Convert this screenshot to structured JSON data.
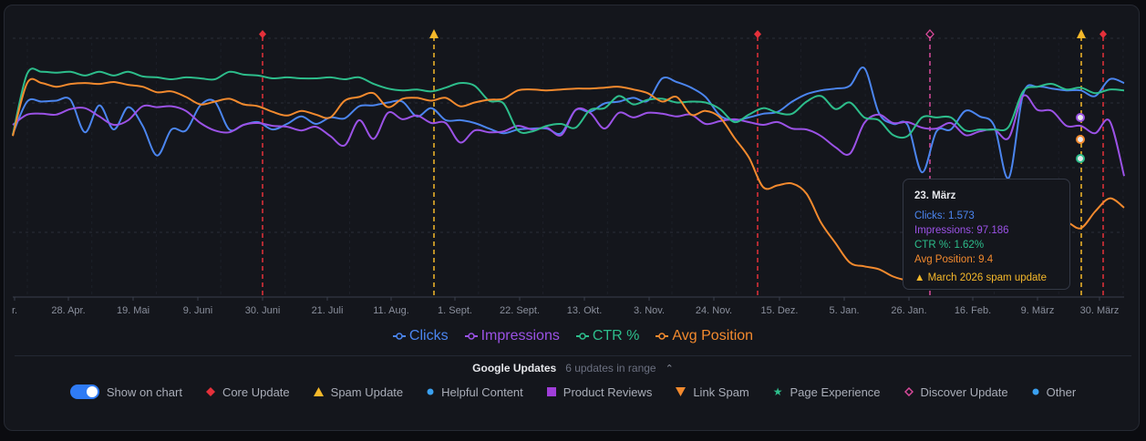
{
  "chart_data": {
    "type": "line",
    "x_tick_labels": [
      "r.",
      "28. Apr.",
      "19. Mai",
      "9. Juni",
      "30. Juni",
      "21. Juli",
      "11. Aug.",
      "1. Sept.",
      "22. Sept.",
      "13. Okt.",
      "3. Nov.",
      "24. Nov.",
      "15. Dez.",
      "5. Jan.",
      "26. Jan.",
      "16. Feb.",
      "9. März",
      "30. März"
    ],
    "grid": "horizontal dashed",
    "series": [
      {
        "name": "Clicks",
        "color": "#4b85ef",
        "values": [
          105,
          70,
          70,
          69,
          68,
          103,
          74,
          100,
          76,
          96,
          128,
          100,
          101,
          74,
          70,
          100,
          95,
          92,
          100,
          94,
          86,
          94,
          87,
          88,
          75,
          74,
          71,
          70,
          86,
          77,
          90,
          90,
          93,
          99,
          104,
          100,
          99,
          99,
          104,
          79,
          81,
          72,
          70,
          66,
          69,
          45,
          49,
          55,
          65,
          85,
          90,
          87,
          83,
          81,
          70,
          62,
          58,
          56,
          53,
          34,
          82,
          94,
          95,
          146,
          102,
          100,
          80,
          86,
          96,
          152,
          62,
          54,
          56,
          58,
          58,
          64,
          46,
          50
        ]
      },
      {
        "name": "Impressions",
        "color": "#9b52e6",
        "values": [
          95,
          84,
          83,
          84,
          78,
          77,
          86,
          95,
          90,
          75,
          76,
          75,
          80,
          93,
          101,
          103,
          95,
          93,
          96,
          97,
          101,
          97,
          107,
          117,
          90,
          110,
          82,
          89,
          85,
          93,
          93,
          114,
          101,
          103,
          102,
          96,
          100,
          98,
          106,
          79,
          82,
          99,
          82,
          87,
          82,
          83,
          86,
          84,
          94,
          91,
          89,
          92,
          95,
          92,
          99,
          100,
          107,
          119,
          126,
          93,
          84,
          93,
          92,
          98,
          99,
          93,
          106,
          102,
          100,
          109,
          64,
          79,
          80,
          96,
          96,
          104,
          91,
          150
        ]
      },
      {
        "name": "CTR %",
        "color": "#2dbd8b",
        "values": [
          106,
          40,
          38,
          39,
          38,
          42,
          38,
          42,
          38,
          43,
          44,
          46,
          44,
          45,
          46,
          38,
          41,
          42,
          45,
          44,
          45,
          45,
          44,
          46,
          44,
          51,
          56,
          58,
          57,
          59,
          55,
          50,
          53,
          69,
          72,
          101,
          102,
          96,
          94,
          98,
          79,
          77,
          64,
          73,
          68,
          67,
          71,
          70,
          71,
          78,
          92,
          84,
          77,
          82,
          83,
          70,
          64,
          78,
          71,
          87,
          90,
          106,
          107,
          87,
          87,
          87,
          101,
          100,
          100,
          97,
          59,
          54,
          51,
          57,
          55,
          61,
          57,
          58
        ]
      },
      {
        "name": "Avg Position",
        "color": "#f38a2e",
        "values": [
          107,
          50,
          50,
          54,
          51,
          50,
          51,
          49,
          52,
          54,
          60,
          59,
          65,
          73,
          70,
          67,
          73,
          75,
          81,
          85,
          80,
          84,
          87,
          69,
          65,
          61,
          76,
          67,
          66,
          69,
          66,
          75,
          71,
          68,
          67,
          58,
          57,
          58,
          57,
          56,
          56,
          55,
          54,
          57,
          61,
          70,
          65,
          84,
          80,
          87,
          109,
          130,
          162,
          160,
          158,
          169,
          200,
          222,
          243,
          247,
          250,
          258,
          262,
          262,
          264,
          263,
          266,
          267,
          258,
          247,
          233,
          220,
          208,
          200,
          206,
          188,
          174,
          184
        ]
      }
    ],
    "update_markers": [
      {
        "type": "Core Update",
        "color": "#e5303a"
      },
      {
        "type": "Spam Update",
        "color": "#f5b82a"
      },
      {
        "type": "Core Update",
        "color": "#e5303a"
      },
      {
        "type": "Discover Update",
        "color": "#d94a9b"
      },
      {
        "type": "Spam Update",
        "color": "#f5b82a"
      },
      {
        "type": "Core Update",
        "color": "#e5303a"
      }
    ],
    "tooltip": {
      "date": "23. März",
      "lines": [
        "Clicks: 1.573",
        "Impressions: 97.186",
        "CTR %: 1.62%",
        "Avg Position: 9.4"
      ],
      "event": "March 2026 spam update"
    }
  },
  "legend": [
    {
      "label": "Clicks",
      "color": "#4b85ef"
    },
    {
      "label": "Impressions",
      "color": "#9b52e6"
    },
    {
      "label": "CTR %",
      "color": "#2dbd8b"
    },
    {
      "label": "Avg Position",
      "color": "#f38a2e"
    }
  ],
  "updates": {
    "title": "Google Updates",
    "count": "6 updates in range",
    "chevron": "⌃",
    "show_label": "Show on chart",
    "types": [
      {
        "label": "Core Update",
        "icon": "diamond-icon",
        "color": "#e5303a"
      },
      {
        "label": "Spam Update",
        "icon": "triangle-up-icon",
        "color": "#f5b82a"
      },
      {
        "label": "Helpful Content",
        "icon": "dot-icon",
        "color": "#3aa0f0"
      },
      {
        "label": "Product Reviews",
        "icon": "square-icon",
        "color": "#a03ed9"
      },
      {
        "label": "Link Spam",
        "icon": "triangle-down-icon",
        "color": "#f38a2e"
      },
      {
        "label": "Page Experience",
        "icon": "star-icon",
        "color": "#2dbd8b"
      },
      {
        "label": "Discover Update",
        "icon": "diamond-outline-icon",
        "color": "#d94a9b"
      },
      {
        "label": "Other",
        "icon": "dot-icon",
        "color": "#3aa0f0"
      }
    ]
  }
}
